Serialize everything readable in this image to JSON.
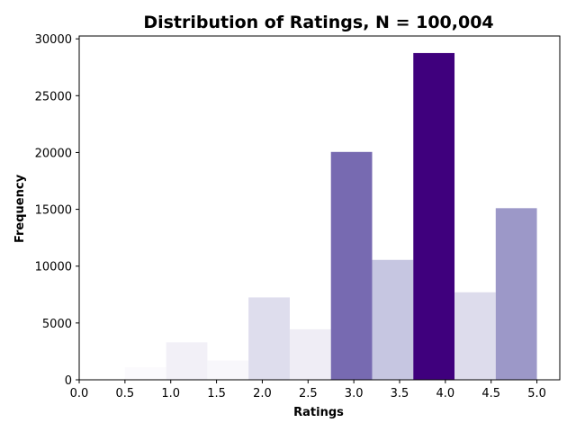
{
  "chart_data": {
    "type": "bar",
    "title": "Distribution of Ratings, N = 100,004",
    "xlabel": "Ratings",
    "ylabel": "Frequency",
    "xlim": [
      0.0,
      5.25
    ],
    "ylim": [
      0,
      30250
    ],
    "xticks": [
      0.0,
      0.5,
      1.0,
      1.5,
      2.0,
      2.5,
      3.0,
      3.5,
      4.0,
      4.5,
      5.0
    ],
    "xtick_labels": [
      "0.0",
      "0.5",
      "1.0",
      "1.5",
      "2.0",
      "2.5",
      "3.0",
      "3.5",
      "4.0",
      "4.5",
      "5.0"
    ],
    "yticks": [
      0,
      5000,
      10000,
      15000,
      20000,
      25000,
      30000
    ],
    "ytick_labels": [
      "0",
      "5000",
      "10000",
      "15000",
      "20000",
      "25000",
      "30000"
    ],
    "bins": [
      {
        "start": 0.5,
        "end": 0.95,
        "value": 1100,
        "color": "#fbfafd"
      },
      {
        "start": 0.95,
        "end": 1.4,
        "value": 3300,
        "color": "#f2f0f7"
      },
      {
        "start": 1.4,
        "end": 1.85,
        "value": 1700,
        "color": "#f8f7fb"
      },
      {
        "start": 1.85,
        "end": 2.3,
        "value": 7250,
        "color": "#dedded"
      },
      {
        "start": 2.3,
        "end": 2.75,
        "value": 4450,
        "color": "#efedf5"
      },
      {
        "start": 2.75,
        "end": 3.2,
        "value": 20050,
        "color": "#776ab1"
      },
      {
        "start": 3.2,
        "end": 3.65,
        "value": 10550,
        "color": "#c6c6e1"
      },
      {
        "start": 3.65,
        "end": 4.1,
        "value": 28750,
        "color": "#3f007d"
      },
      {
        "start": 4.1,
        "end": 4.55,
        "value": 7700,
        "color": "#dddcec"
      },
      {
        "start": 4.55,
        "end": 5.0,
        "value": 15100,
        "color": "#9c98c8"
      }
    ]
  }
}
